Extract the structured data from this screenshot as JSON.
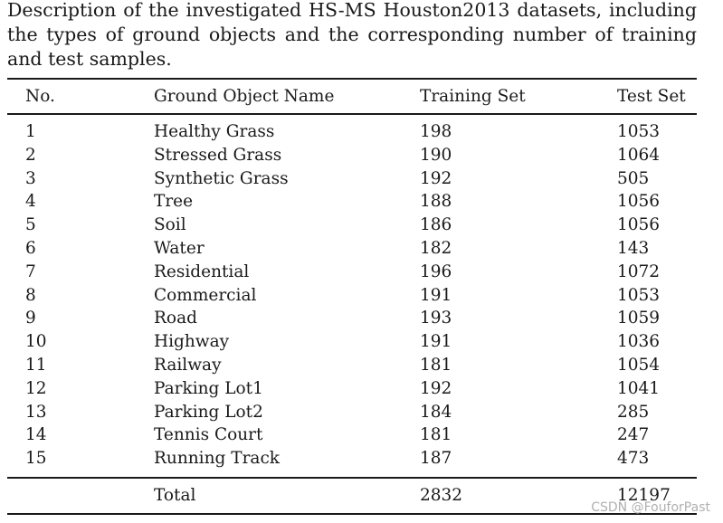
{
  "caption": "Description of the investigated HS-MS Houston2013 datasets, including the types of ground objects and the corresponding number of training and test samples.",
  "table": {
    "headers": [
      "No.",
      "Ground Object Name",
      "Training Set",
      "Test Set"
    ],
    "rows": [
      [
        "1",
        "Healthy Grass",
        "198",
        "1053"
      ],
      [
        "2",
        "Stressed Grass",
        "190",
        "1064"
      ],
      [
        "3",
        "Synthetic Grass",
        "192",
        "505"
      ],
      [
        "4",
        "Tree",
        "188",
        "1056"
      ],
      [
        "5",
        "Soil",
        "186",
        "1056"
      ],
      [
        "6",
        "Water",
        "182",
        "143"
      ],
      [
        "7",
        "Residential",
        "196",
        "1072"
      ],
      [
        "8",
        "Commercial",
        "191",
        "1053"
      ],
      [
        "9",
        "Road",
        "193",
        "1059"
      ],
      [
        "10",
        "Highway",
        "191",
        "1036"
      ],
      [
        "11",
        "Railway",
        "181",
        "1054"
      ],
      [
        "12",
        "Parking Lot1",
        "192",
        "1041"
      ],
      [
        "13",
        "Parking Lot2",
        "184",
        "285"
      ],
      [
        "14",
        "Tennis Court",
        "181",
        "247"
      ],
      [
        "15",
        "Running Track",
        "187",
        "473"
      ]
    ],
    "total": [
      "",
      "Total",
      "2832",
      "12197"
    ]
  },
  "watermark": "CSDN @FouforPast"
}
